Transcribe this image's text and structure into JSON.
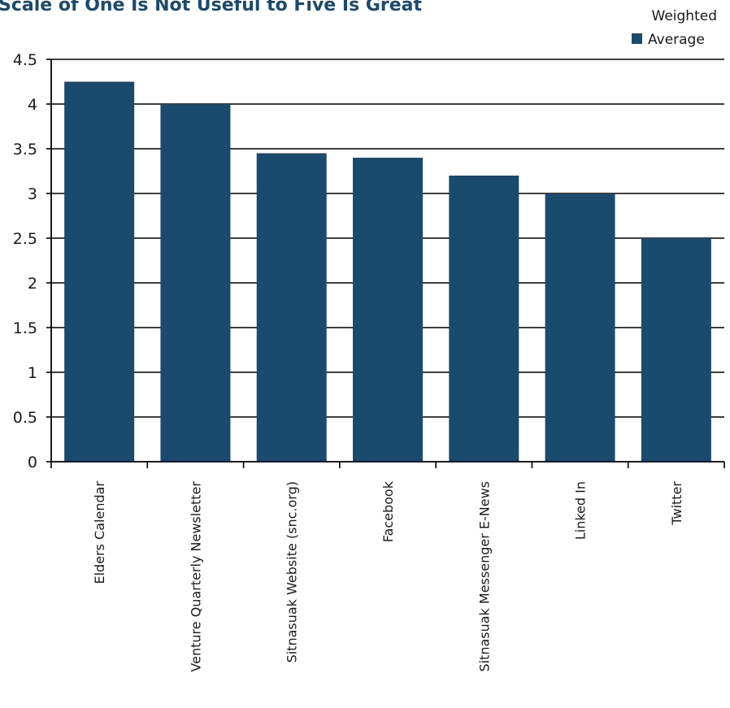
{
  "chart_data": {
    "type": "bar",
    "title": "Scale of One Is Not Useful to Five Is Great",
    "xlabel": "",
    "ylabel": "",
    "categories": [
      "Elders Calendar",
      "Venture Quarterly Newsletter",
      "Sitnasuak Website (snc.org)",
      "Facebook",
      "Sitnasuak Messenger E-News",
      "Linked In",
      "Twitter"
    ],
    "series": [
      {
        "name": "Weighted Average",
        "legend_lines": [
          "Weighted",
          "Average"
        ],
        "values": [
          4.25,
          4.0,
          3.45,
          3.4,
          3.2,
          3.0,
          2.5
        ]
      }
    ],
    "ylim": [
      0,
      4.5
    ],
    "yticks": [
      0,
      0.5,
      1,
      1.5,
      2,
      2.5,
      3,
      3.5,
      4,
      4.5
    ],
    "ytick_labels": [
      "0",
      "0.5",
      "1",
      "1.5",
      "2",
      "2.5",
      "3",
      "3.5",
      "4",
      "4.5"
    ],
    "grid": true,
    "legend_position": "top-right",
    "colors": {
      "bar": "#1b4a6f",
      "title": "#1b4a6f",
      "axis": "#000000"
    }
  }
}
